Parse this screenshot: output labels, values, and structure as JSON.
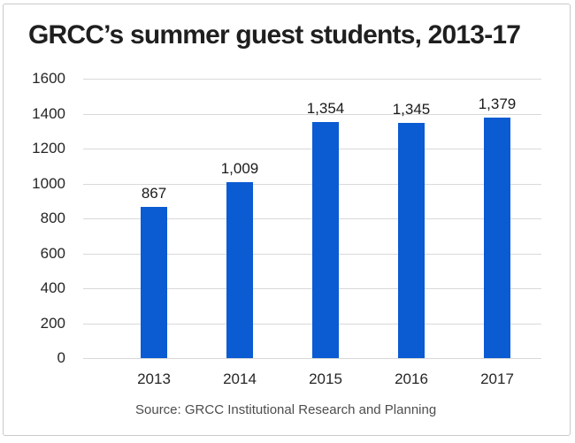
{
  "chart_data": {
    "type": "bar",
    "title": "GRCC’s summer guest students, 2013-17",
    "categories": [
      "2013",
      "2014",
      "2015",
      "2016",
      "2017"
    ],
    "values": [
      867,
      1009,
      1354,
      1345,
      1379
    ],
    "value_labels": [
      "867",
      "1,009",
      "1,354",
      "1,345",
      "1,379"
    ],
    "xlabel": "",
    "ylabel": "",
    "ylim": [
      0,
      1600
    ],
    "ytick_interval": 200,
    "yticks": [
      1600,
      1400,
      1200,
      1000,
      800,
      600,
      400,
      200,
      0
    ],
    "grid": true,
    "legend_position": "none",
    "source": "Source: GRCC Institutional Research and Planning",
    "colors": {
      "bar": "#0b5bd2",
      "gridline": "#d9d9d9",
      "title_text": "#1f1f1f",
      "axis_text": "#262626",
      "data_label_text": "#1a1a1a",
      "source_text": "#4d4d4d",
      "background": "#ffffff",
      "frame_border": "#c9c9c9"
    }
  }
}
